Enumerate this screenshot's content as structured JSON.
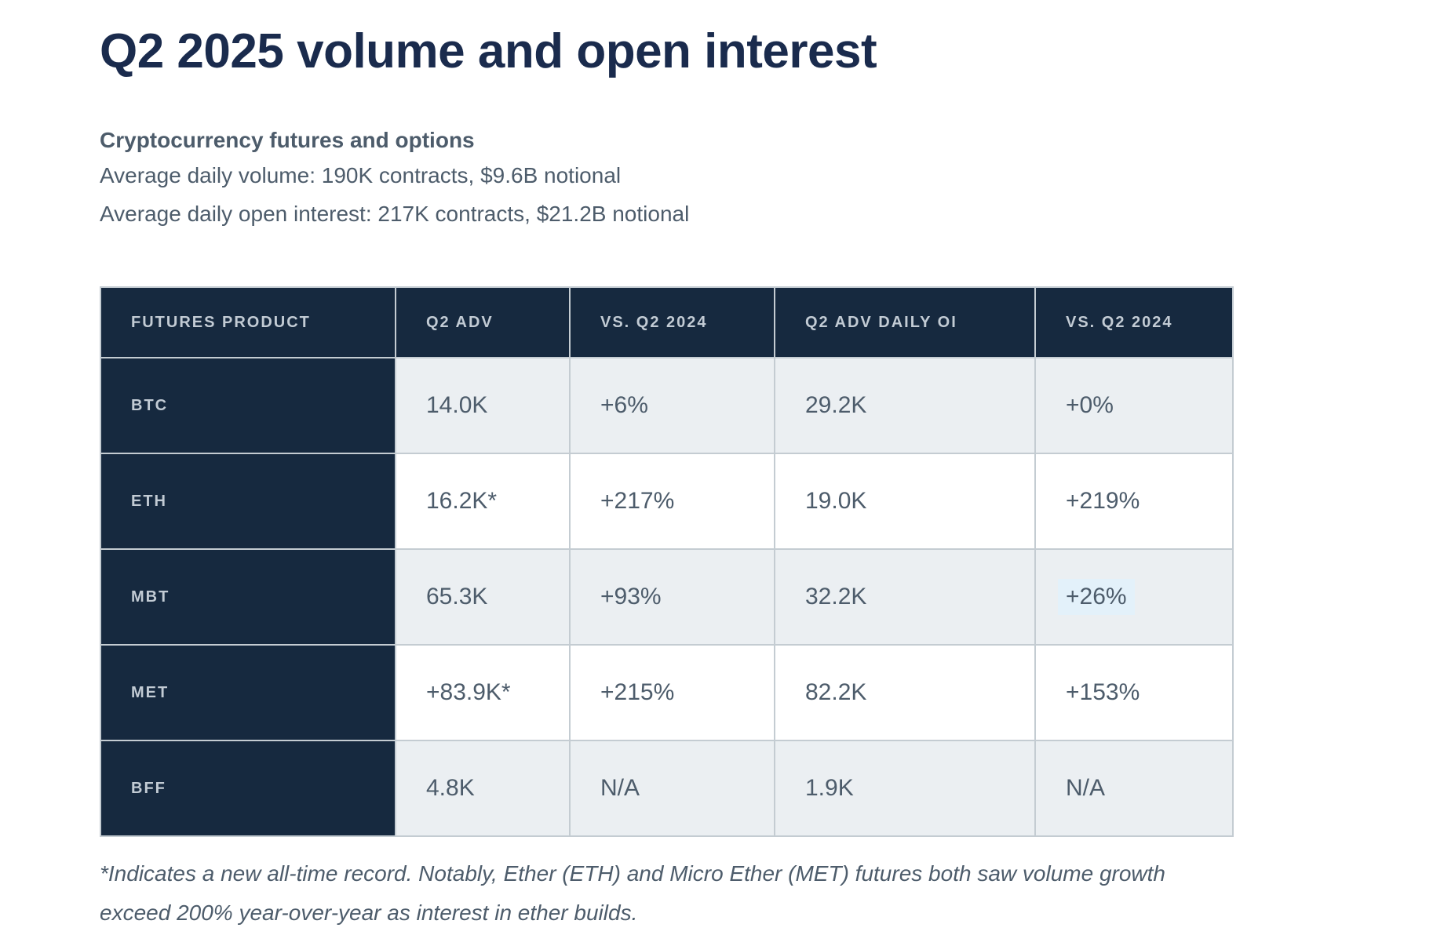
{
  "page": {
    "title": "Q2 2025 volume and open interest",
    "subtitle": "Cryptocurrency futures and options",
    "summary_lines": [
      "Average daily volume: 190K contracts, $9.6B notional",
      "Average daily open interest: 217K contracts, $21.2B notional"
    ],
    "footnote": "*Indicates a new all-time record. Notably, Ether (ETH) and Micro Ether (MET) futures both saw volume growth exceed 200% year-over-year as interest in ether builds."
  },
  "colors": {
    "navy_header": "#16293F",
    "title_navy": "#1A2B4D",
    "body_text": "#4D5C6B",
    "header_label_text": "#C2CBD4",
    "alt_row_background": "#EBEFF2",
    "row_background": "#FFFFFF",
    "grid_border": "#C4CCD2",
    "selection_highlight": "#E3F1FA"
  },
  "table": {
    "columns": [
      "FUTURES PRODUCT",
      "Q2 ADV",
      "VS. Q2 2024",
      "Q2 ADV DAILY OI",
      "VS. Q2 2024"
    ],
    "rows": [
      {
        "label": "BTC",
        "cells": [
          "14.0K",
          "+6%",
          "29.2K",
          "+0%"
        ]
      },
      {
        "label": "ETH",
        "cells": [
          "16.2K*",
          "+217%",
          "19.0K",
          "+219%"
        ]
      },
      {
        "label": "MBT",
        "cells": [
          "65.3K",
          "+93%",
          "32.2K",
          "+26%"
        ]
      },
      {
        "label": "MET",
        "cells": [
          "+83.9K*",
          "+215%",
          "82.2K",
          "+153%"
        ]
      },
      {
        "label": "BFF",
        "cells": [
          "4.8K",
          "N/A",
          "1.9K",
          "N/A"
        ]
      }
    ],
    "highlight": {
      "row": 2,
      "cell": 3
    }
  }
}
